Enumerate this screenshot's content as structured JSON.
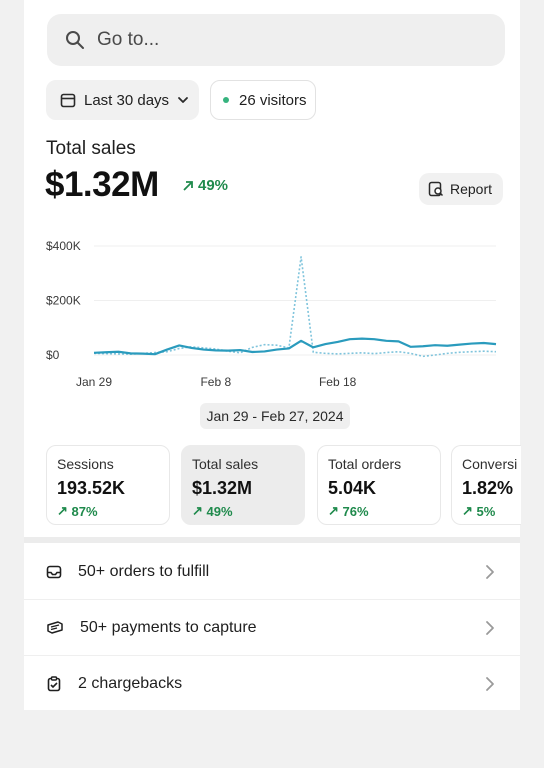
{
  "search": {
    "placeholder": "Go to..."
  },
  "filters": {
    "range_label": "Last 30 days",
    "visitors_label": "26 visitors"
  },
  "total_sales": {
    "label": "Total sales",
    "value": "$1.32M",
    "delta": "49%"
  },
  "report_button": {
    "label": "Report"
  },
  "chart_data": {
    "type": "line",
    "y_ticks": [
      "$400K",
      "$200K",
      "$0"
    ],
    "ylim": [
      0,
      400000
    ],
    "x_ticks": [
      "Jan 29",
      "Feb 8",
      "Feb 18"
    ],
    "grid": true,
    "series": [
      {
        "style": "solid",
        "color": "#2a9bbd",
        "values": [
          8000,
          10000,
          12000,
          6000,
          5000,
          3000,
          20000,
          35000,
          26000,
          20000,
          17000,
          16000,
          18000,
          11000,
          13000,
          20000,
          24000,
          52000,
          28000,
          40000,
          48000,
          58000,
          60000,
          58000,
          52000,
          50000,
          30000,
          32000,
          36000,
          34000,
          38000,
          42000,
          44000,
          40000
        ]
      },
      {
        "style": "dotted",
        "color": "#7fc4dc",
        "values": [
          6000,
          5000,
          4000,
          3000,
          6000,
          9000,
          12000,
          24000,
          30000,
          26000,
          22000,
          14000,
          8000,
          28000,
          38000,
          36000,
          26000,
          360000,
          10000,
          6000,
          4000,
          6000,
          8000,
          5000,
          9000,
          12000,
          6000,
          -5000,
          0,
          6000,
          10000,
          12000,
          14000,
          12000
        ]
      }
    ]
  },
  "date_range": "Jan 29 - Feb 27, 2024",
  "metrics": [
    {
      "label": "Sessions",
      "value": "193.52K",
      "delta": "87%"
    },
    {
      "label": "Total sales",
      "value": "$1.32M",
      "delta": "49%"
    },
    {
      "label": "Total orders",
      "value": "5.04K",
      "delta": "76%"
    },
    {
      "label": "Conversi",
      "value": "1.82%",
      "delta": "5%"
    }
  ],
  "tasks": [
    {
      "label": "50+ orders to fulfill",
      "icon": "inbox-icon"
    },
    {
      "label": "50+ payments to capture",
      "icon": "payment-icon"
    },
    {
      "label": "2 chargebacks",
      "icon": "clipboard-icon"
    }
  ],
  "colors": {
    "positive": "#1f8a4c",
    "line": "#2a9bbd",
    "line_compare": "#7fc4dc",
    "status_dot": "#36b37e"
  }
}
